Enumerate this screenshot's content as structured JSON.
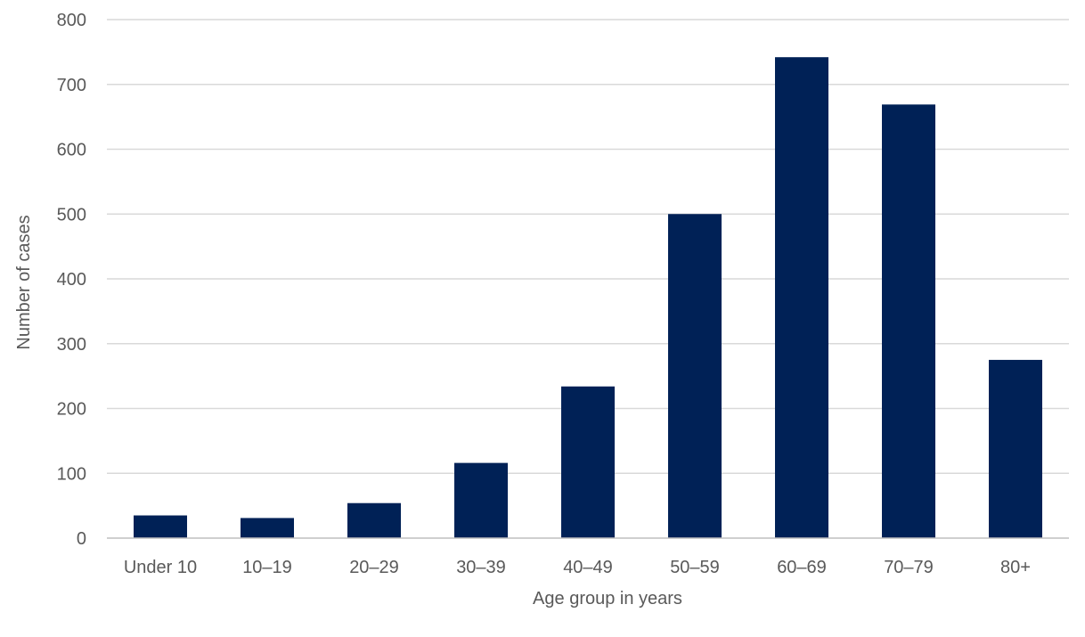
{
  "chart_data": {
    "type": "bar",
    "categories": [
      "Under 10",
      "10–19",
      "20–29",
      "30–39",
      "40–49",
      "50–59",
      "60–69",
      "70–79",
      "80+"
    ],
    "values": [
      35,
      31,
      54,
      116,
      234,
      500,
      742,
      669,
      275
    ],
    "title": "",
    "xlabel": "Age group in years",
    "ylabel": "Number of cases",
    "ylim": [
      0,
      800
    ],
    "yticks": [
      0,
      100,
      200,
      300,
      400,
      500,
      600,
      700,
      800
    ],
    "grid": true,
    "legend": "none",
    "bar_color": "#002156"
  }
}
